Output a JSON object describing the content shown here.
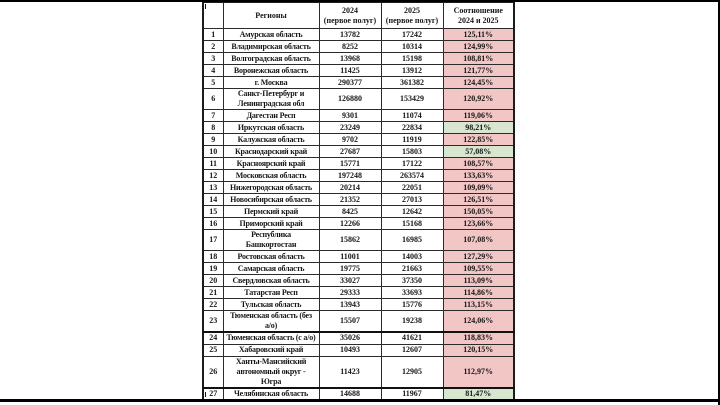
{
  "page": {
    "background": "#ffffff",
    "frame_color": "#000000"
  },
  "table": {
    "header": {
      "num": "",
      "region": "Регионы",
      "y2024_line1": "2024",
      "y2024_line2": "(первое полуг)",
      "y2025_line1": "2025",
      "y2025_line2": "(первое полуг)",
      "ratio_line1": "Соотношение",
      "ratio_line2": "2024 и 2025"
    },
    "colors": {
      "up_bg": "#f3c6c6",
      "down_bg": "#d7e7cf"
    },
    "rows": [
      {
        "num": "1",
        "region": "Амурская область",
        "v2024": "13782",
        "v2025": "17242",
        "ratio": "125,11%",
        "trend": "up"
      },
      {
        "num": "2",
        "region": "Владимирская область",
        "v2024": "8252",
        "v2025": "10314",
        "ratio": "124,99%",
        "trend": "up"
      },
      {
        "num": "3",
        "region": "Волгоградская область",
        "v2024": "13968",
        "v2025": "15198",
        "ratio": "108,81%",
        "trend": "up"
      },
      {
        "num": "4",
        "region": "Воронежская область",
        "v2024": "11425",
        "v2025": "13912",
        "ratio": "121,77%",
        "trend": "up"
      },
      {
        "num": "5",
        "region": "г. Москва",
        "v2024": "290377",
        "v2025": "361382",
        "ratio": "124,45%",
        "trend": "up"
      },
      {
        "num": "6",
        "region": "Санкт-Петербург и\nЛенинградская обл",
        "v2024": "126880",
        "v2025": "153429",
        "ratio": "120,92%",
        "trend": "up"
      },
      {
        "num": "7",
        "region": "Дагестан Респ",
        "v2024": "9301",
        "v2025": "11074",
        "ratio": "119,06%",
        "trend": "up"
      },
      {
        "num": "8",
        "region": "Иркутская область",
        "v2024": "23249",
        "v2025": "22834",
        "ratio": "98,21%",
        "trend": "down"
      },
      {
        "num": "9",
        "region": "Калужская область",
        "v2024": "9702",
        "v2025": "11919",
        "ratio": "122,85%",
        "trend": "up"
      },
      {
        "num": "10",
        "region": "Краснодарский край",
        "v2024": "27687",
        "v2025": "15803",
        "ratio": "57,08%",
        "trend": "down"
      },
      {
        "num": "11",
        "region": "Красноярский край",
        "v2024": "15771",
        "v2025": "17122",
        "ratio": "108,57%",
        "trend": "up"
      },
      {
        "num": "12",
        "region": "Московская область",
        "v2024": "197248",
        "v2025": "263574",
        "ratio": "133,63%",
        "trend": "up"
      },
      {
        "num": "13",
        "region": "Нижегородская область",
        "v2024": "20214",
        "v2025": "22051",
        "ratio": "109,09%",
        "trend": "up"
      },
      {
        "num": "14",
        "region": "Новосибирская область",
        "v2024": "21352",
        "v2025": "27013",
        "ratio": "126,51%",
        "trend": "up"
      },
      {
        "num": "15",
        "region": "Пермский край",
        "v2024": "8425",
        "v2025": "12642",
        "ratio": "150,05%",
        "trend": "up"
      },
      {
        "num": "16",
        "region": "Приморский край",
        "v2024": "12266",
        "v2025": "15168",
        "ratio": "123,66%",
        "trend": "up"
      },
      {
        "num": "17",
        "region": "Республика Башкортостан",
        "v2024": "15862",
        "v2025": "16985",
        "ratio": "107,08%",
        "trend": "up"
      },
      {
        "num": "18",
        "region": "Ростовская область",
        "v2024": "11001",
        "v2025": "14003",
        "ratio": "127,29%",
        "trend": "up"
      },
      {
        "num": "19",
        "region": "Самарская область",
        "v2024": "19775",
        "v2025": "21663",
        "ratio": "109,55%",
        "trend": "up"
      },
      {
        "num": "20",
        "region": "Свердловская область",
        "v2024": "33027",
        "v2025": "37350",
        "ratio": "113,09%",
        "trend": "up"
      },
      {
        "num": "21",
        "region": "Татарстан Респ",
        "v2024": "29333",
        "v2025": "33693",
        "ratio": "114,86%",
        "trend": "up"
      },
      {
        "num": "22",
        "region": "Тульская область",
        "v2024": "13943",
        "v2025": "15776",
        "ratio": "113,15%",
        "trend": "up"
      },
      {
        "num": "23",
        "region": "Тюменская область (без\nа/о)",
        "v2024": "15507",
        "v2025": "19238",
        "ratio": "124,06%",
        "trend": "up"
      },
      {
        "num": "24",
        "region": "Тюменская область (с а/о)",
        "v2024": "35026",
        "v2025": "41621",
        "ratio": "118,83%",
        "trend": "up",
        "break_before": true
      },
      {
        "num": "25",
        "region": "Хабаровский край",
        "v2024": "10493",
        "v2025": "12607",
        "ratio": "120,15%",
        "trend": "up"
      },
      {
        "num": "26",
        "region": "Ханты-Мансийский\nавтономный округ - Югра",
        "v2024": "11423",
        "v2025": "12905",
        "ratio": "112,97%",
        "trend": "up"
      },
      {
        "num": "27",
        "region": "Челябинская область",
        "v2024": "14688",
        "v2025": "11967",
        "ratio": "81,47%",
        "trend": "down",
        "break_before": true,
        "tick": true
      }
    ]
  }
}
